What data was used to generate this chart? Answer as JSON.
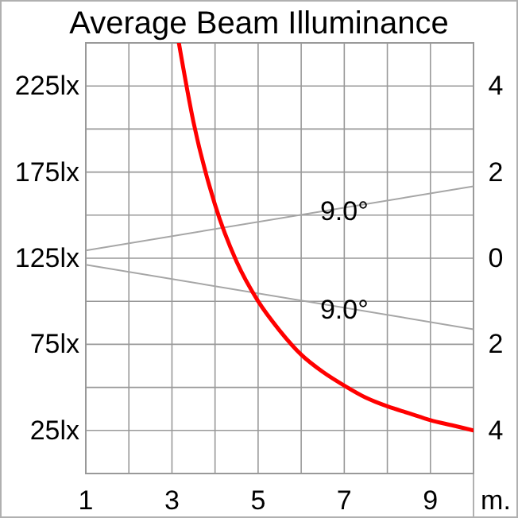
{
  "chart_data": {
    "type": "line",
    "title": "Average Beam Illuminance",
    "xlabel": "m.",
    "xlim": [
      1,
      10
    ],
    "xticks": [
      1,
      {
        "value": 2,
        "label": null
      },
      3,
      {
        "value": 4,
        "label": null
      },
      5,
      {
        "value": 6,
        "label": null
      },
      7,
      {
        "value": 8,
        "label": null
      },
      9,
      {
        "value": 10,
        "label": null
      }
    ],
    "ylim": [
      0,
      250
    ],
    "yticks": [
      {
        "value": 25,
        "label": "25lx"
      },
      {
        "value": 50,
        "label": null
      },
      {
        "value": 75,
        "label": "75lx"
      },
      {
        "value": 100,
        "label": null
      },
      {
        "value": 125,
        "label": "125lx"
      },
      {
        "value": 150,
        "label": null
      },
      {
        "value": 175,
        "label": "175lx"
      },
      {
        "value": 200,
        "label": null
      },
      {
        "value": 225,
        "label": "225lx"
      }
    ],
    "y2lim": [
      -5,
      5
    ],
    "y2ticks": [
      {
        "value": 4,
        "label": "4"
      },
      {
        "value": 2,
        "label": "2"
      },
      {
        "value": 0,
        "label": "0"
      },
      {
        "value": -2,
        "label": "2"
      },
      {
        "value": -4,
        "label": "4"
      }
    ],
    "grid": true,
    "series": [
      {
        "color": "#ff0000",
        "x": [
          3.16,
          3.5,
          4,
          4.5,
          5,
          5.5,
          6,
          6.5,
          7,
          7.5,
          8,
          8.5,
          9,
          9.5,
          10
        ],
        "values": [
          250,
          204,
          156,
          123,
          100,
          83,
          69,
          59,
          51,
          44,
          39,
          35,
          31,
          28,
          25
        ]
      },
      {
        "color": "#a6a6a6",
        "axis": "y2",
        "x": [
          1,
          10
        ],
        "values": [
          0.18,
          1.67
        ]
      },
      {
        "color": "#a6a6a6",
        "axis": "y2",
        "x": [
          1,
          10
        ],
        "values": [
          -0.15,
          -1.65
        ]
      }
    ],
    "annotations": [
      {
        "text": "9.0°",
        "x": 7,
        "y": 152
      },
      {
        "text": "9.0°",
        "x": 7,
        "y": 95
      }
    ]
  }
}
